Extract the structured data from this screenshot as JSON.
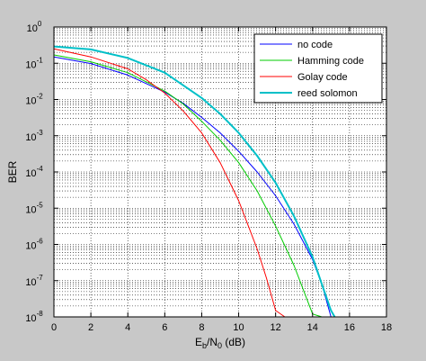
{
  "chart_data": {
    "type": "line",
    "title": "",
    "xlabel": {
      "main": "E",
      "sub1": "b",
      "mid": "/N",
      "sub2": "0",
      "tail": " (dB)"
    },
    "ylabel": "BER",
    "xlim": [
      0,
      18
    ],
    "ylim": [
      1e-08,
      1
    ],
    "yscale": "log",
    "x_ticks": [
      "0",
      "2",
      "4",
      "6",
      "8",
      "10",
      "12",
      "14",
      "16",
      "18"
    ],
    "y_ticks": [
      {
        "value": 1,
        "base": "10",
        "exp": "0"
      },
      {
        "value": 0.1,
        "base": "10",
        "exp": "-1"
      },
      {
        "value": 0.01,
        "base": "10",
        "exp": "-2"
      },
      {
        "value": 0.001,
        "base": "10",
        "exp": "-3"
      },
      {
        "value": 0.0001,
        "base": "10",
        "exp": "-4"
      },
      {
        "value": 1e-05,
        "base": "10",
        "exp": "-5"
      },
      {
        "value": 1e-06,
        "base": "10",
        "exp": "-6"
      },
      {
        "value": 1e-07,
        "base": "10",
        "exp": "-7"
      },
      {
        "value": 1e-08,
        "base": "10",
        "exp": "-8"
      }
    ],
    "grid": true,
    "legend_position": "top-right",
    "series": [
      {
        "name": "no code",
        "color": "#0000ff",
        "width": 1,
        "x": [
          0,
          2,
          4,
          6,
          7,
          8,
          9,
          10,
          11,
          12,
          13,
          14,
          14.5,
          15
        ],
        "y": [
          0.15,
          0.098,
          0.047,
          0.016,
          0.0078,
          0.0032,
          0.0012,
          0.00037,
          0.0001,
          2.2e-05,
          3.6e-06,
          3.8e-07,
          8e-08,
          1e-08
        ]
      },
      {
        "name": "Hamming code",
        "color": "#00cc00",
        "width": 1,
        "x": [
          0,
          2,
          4,
          6,
          7,
          8,
          9,
          10,
          11,
          12,
          13,
          14,
          14.5
        ],
        "y": [
          0.17,
          0.11,
          0.055,
          0.017,
          0.0075,
          0.0025,
          0.00075,
          0.00018,
          3e-05,
          3.2e-06,
          2.6e-07,
          1.2e-08,
          1e-08
        ]
      },
      {
        "name": "Golay code",
        "color": "#ff0000",
        "width": 1,
        "x": [
          0,
          2,
          4,
          5,
          6,
          7,
          8,
          9,
          10,
          11,
          11.5,
          12,
          12.5
        ],
        "y": [
          0.25,
          0.15,
          0.07,
          0.035,
          0.015,
          0.0048,
          0.0012,
          0.00018,
          1.6e-05,
          7.5e-07,
          1.2e-07,
          1.5e-08,
          1e-08
        ]
      },
      {
        "name": "reed solomon",
        "color": "#00c0c8",
        "width": 2,
        "x": [
          0,
          2,
          4,
          6,
          8,
          9,
          10,
          11,
          12,
          13,
          14,
          14.5,
          15,
          15.2
        ],
        "y": [
          0.29,
          0.24,
          0.14,
          0.055,
          0.011,
          0.004,
          0.0012,
          0.00028,
          5e-05,
          6e-06,
          4.5e-07,
          8e-08,
          1.5e-08,
          1e-08
        ]
      }
    ]
  }
}
